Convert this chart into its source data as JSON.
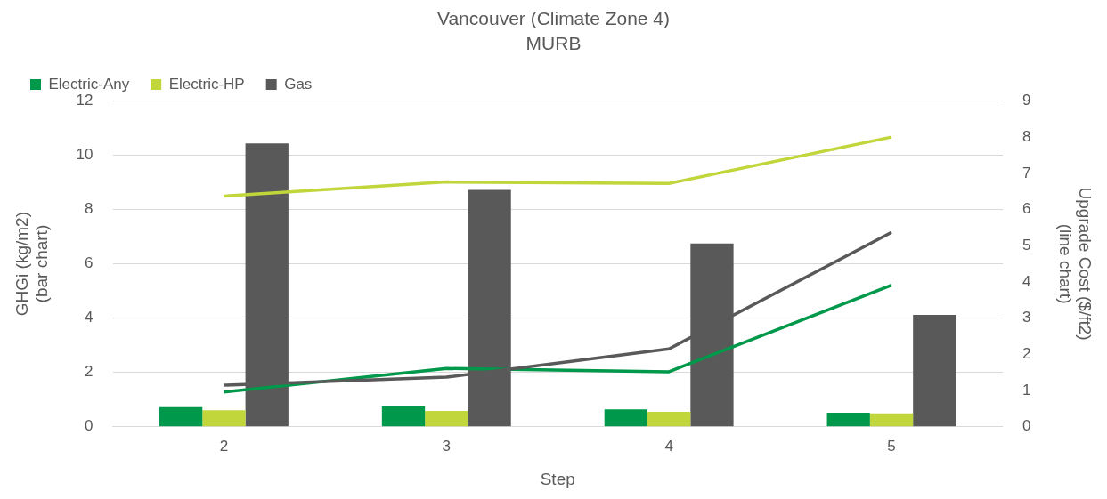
{
  "chart_data": {
    "type": "bar",
    "title": "Vancouver (Climate Zone 4)",
    "subtitle": "MURB",
    "xlabel": "Step",
    "ylabel": "GHGi (kg/m2)\n(bar chart)",
    "y2label": "Upgrade Cost ($/ft2)\n(line chart)",
    "categories": [
      "2",
      "3",
      "4",
      "5"
    ],
    "series": [
      {
        "name": "Electric-Any",
        "color": "#00984a",
        "values": [
          0.72,
          0.75,
          0.64,
          0.52
        ]
      },
      {
        "name": "Electric-HP",
        "color": "#c0d63b",
        "values": [
          0.61,
          0.58,
          0.55,
          0.49
        ]
      },
      {
        "name": "Gas",
        "color": "#595959",
        "values": [
          10.43,
          8.72,
          6.75,
          4.12
        ]
      },
      {
        "type": "line",
        "axis": "y2",
        "color": "#c0d63b",
        "values": [
          6.37,
          6.76,
          6.72,
          8.0
        ]
      },
      {
        "type": "line",
        "axis": "y2",
        "color": "#595959",
        "values": [
          1.15,
          1.37,
          2.15,
          5.37
        ]
      },
      {
        "type": "line",
        "axis": "y2",
        "color": "#00984a",
        "values": [
          0.96,
          1.61,
          1.52,
          3.91
        ]
      }
    ],
    "ylim": [
      0,
      12
    ],
    "yticks": [
      0,
      2,
      4,
      6,
      8,
      10,
      12
    ],
    "y2lim": [
      0,
      9
    ],
    "y2ticks": [
      0,
      1,
      2,
      3,
      4,
      5,
      6,
      7,
      8,
      9
    ],
    "grid": "y",
    "legend": "top left",
    "marker": "none",
    "line_style": "solid"
  }
}
